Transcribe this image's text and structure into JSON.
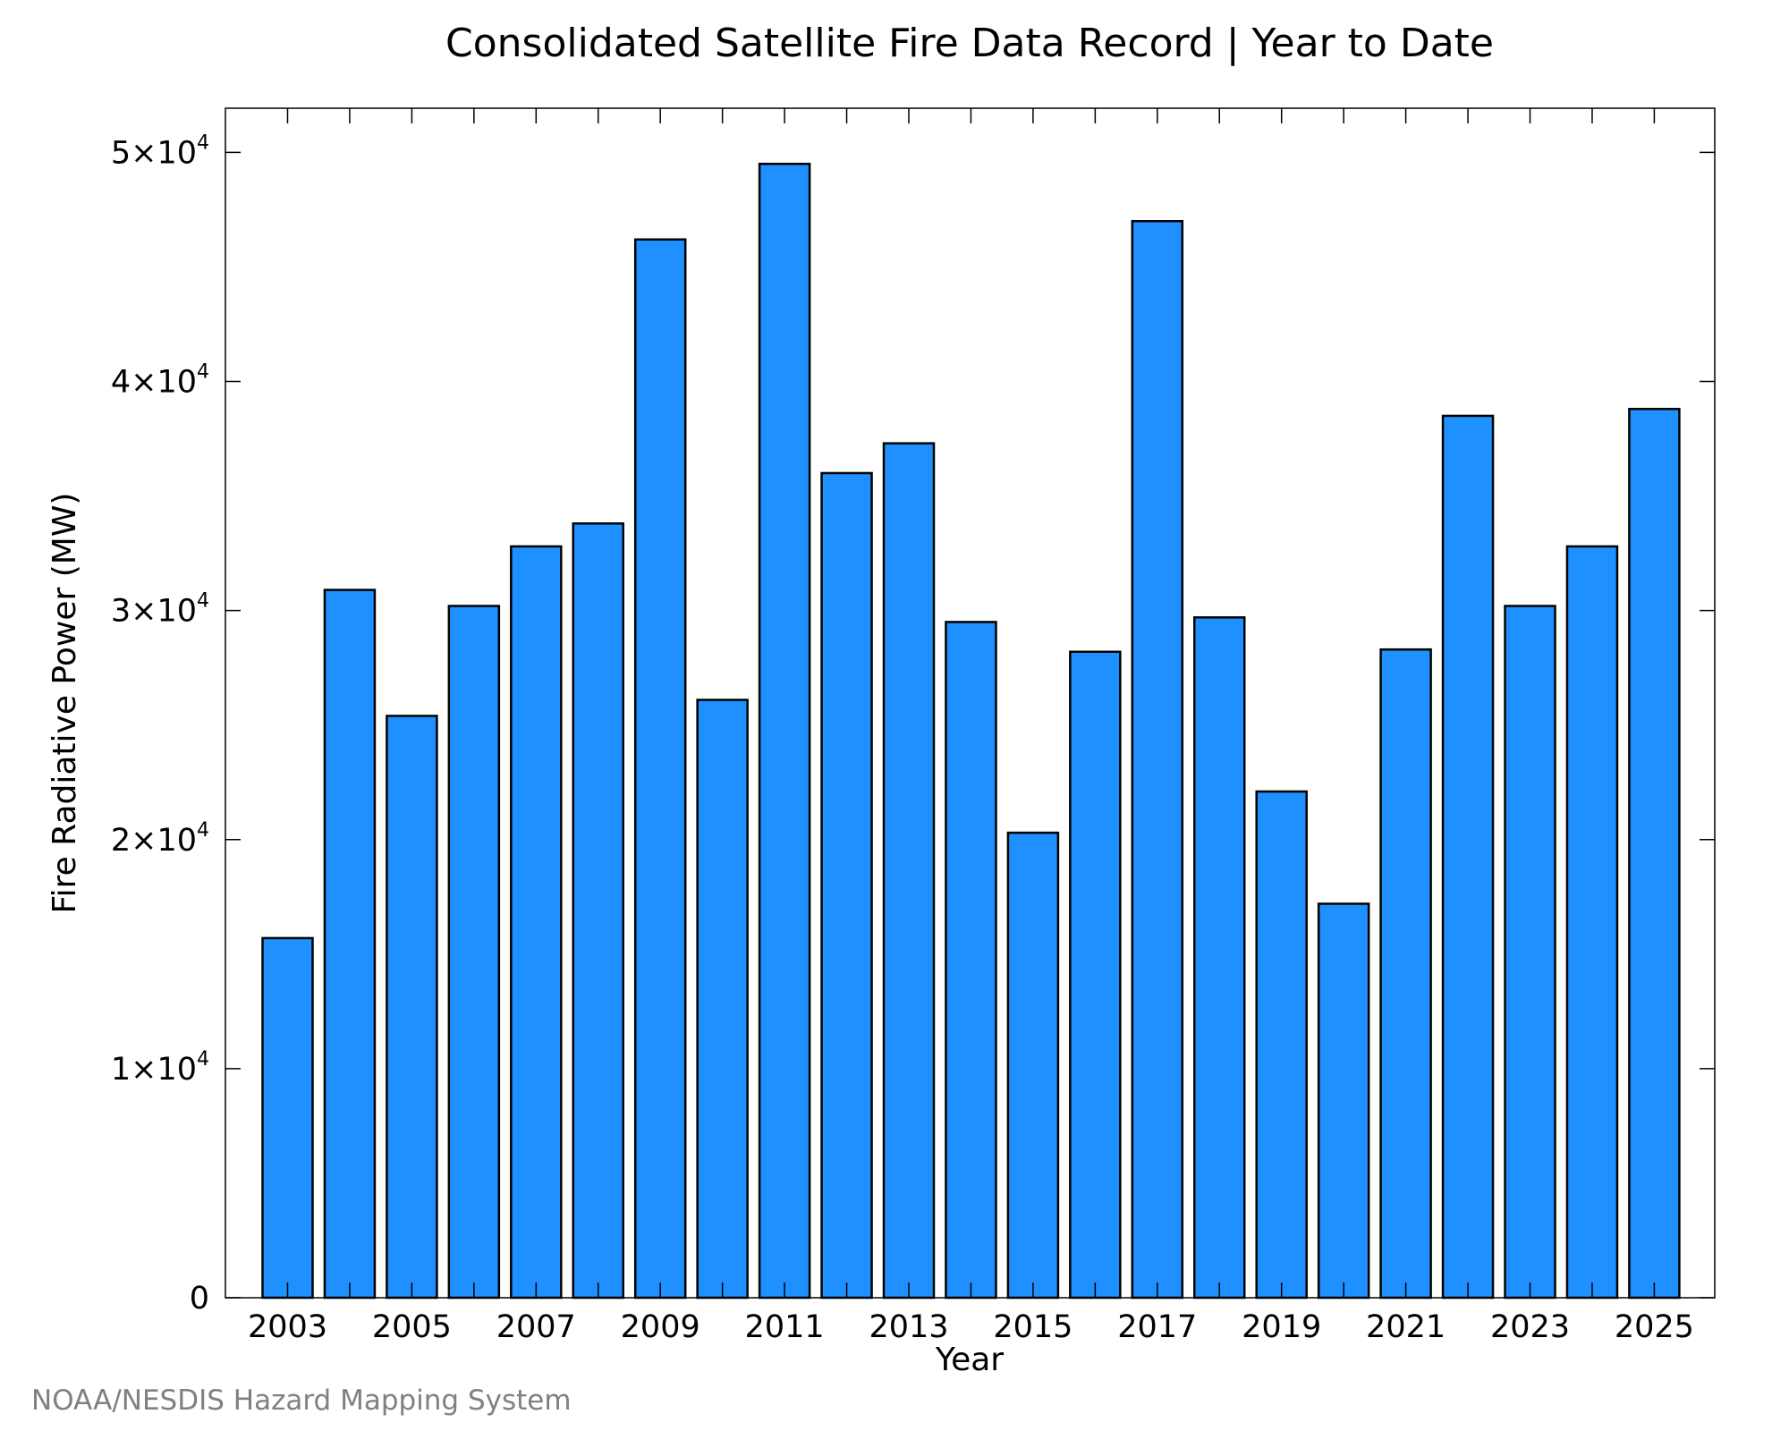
{
  "chart_data": {
    "type": "bar",
    "title": "Consolidated Satellite Fire Data Record | Year to Date",
    "xlabel": "Year",
    "ylabel": "Fire Radiative Power (MW)",
    "categories": [
      "2003",
      "2004",
      "2005",
      "2006",
      "2007",
      "2008",
      "2009",
      "2010",
      "2011",
      "2012",
      "2013",
      "2014",
      "2015",
      "2016",
      "2017",
      "2018",
      "2019",
      "2020",
      "2021",
      "2022",
      "2023",
      "2024",
      "2025"
    ],
    "values": [
      15700,
      30900,
      25400,
      30200,
      32800,
      33800,
      46200,
      26100,
      49500,
      36000,
      37300,
      29500,
      20300,
      28200,
      47000,
      29700,
      22100,
      17200,
      28300,
      38500,
      30200,
      32800,
      38800
    ],
    "ylim": [
      0,
      52000
    ],
    "yticks": [
      {
        "value": 0,
        "mantissa": "0",
        "exp": ""
      },
      {
        "value": 10000,
        "mantissa": "1×10",
        "exp": "4"
      },
      {
        "value": 20000,
        "mantissa": "2×10",
        "exp": "4"
      },
      {
        "value": 30000,
        "mantissa": "3×10",
        "exp": "4"
      },
      {
        "value": 40000,
        "mantissa": "4×10",
        "exp": "4"
      },
      {
        "value": 50000,
        "mantissa": "5×10",
        "exp": "4"
      }
    ],
    "xtick_labels": [
      "2003",
      "2005",
      "2007",
      "2009",
      "2011",
      "2013",
      "2015",
      "2017",
      "2019",
      "2021",
      "2023",
      "2025"
    ],
    "bar_color": "#1e90ff",
    "edge_color": "#000000",
    "grid": false
  },
  "footer": "NOAA/NESDIS Hazard Mapping System"
}
